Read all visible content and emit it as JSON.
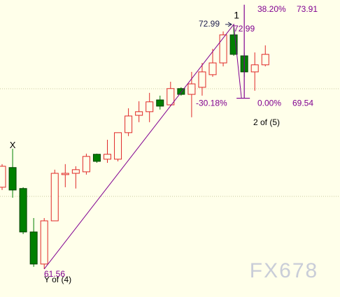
{
  "chart_data": {
    "type": "candlestick",
    "candles": {
      "open": [
        65.38,
        66.3,
        65.32,
        63.29,
        61.79,
        63.81,
        65.97,
        66.03,
        66.1,
        66.92,
        66.69,
        66.69,
        67.93,
        68.74,
        68.91,
        69.46,
        69.23,
        69.99,
        69.72,
        70.05,
        70.64,
        71.19,
        72.5,
        71.52,
        70.77,
        71.1
      ],
      "high": [
        66.46,
        67.18,
        65.38,
        63.94,
        63.94,
        66.2,
        66.46,
        66.36,
        66.95,
        66.95,
        67.6,
        67.93,
        69.07,
        69.4,
        69.79,
        69.66,
        70.31,
        70.05,
        70.77,
        71.19,
        71.85,
        72.66,
        72.99,
        71.68,
        71.68,
        72.01
      ],
      "low": [
        65.25,
        64.89,
        63.19,
        61.66,
        61.56,
        63.81,
        65.38,
        65.32,
        65.97,
        66.52,
        66.52,
        66.59,
        67.77,
        68.42,
        68.42,
        69.01,
        69.17,
        69.66,
        68.65,
        69.66,
        70.54,
        71.03,
        71.52,
        70.54,
        69.89,
        71.03
      ],
      "close": [
        66.36,
        65.25,
        63.29,
        61.79,
        63.81,
        66.03,
        66.03,
        66.2,
        66.82,
        66.59,
        66.92,
        67.93,
        68.71,
        68.91,
        69.37,
        69.17,
        69.99,
        69.72,
        70.21,
        70.77,
        71.19,
        72.5,
        71.59,
        70.77,
        71.1,
        71.59
      ]
    },
    "up_color": "#e02828",
    "down_color": "#008000",
    "line_color": "#800090",
    "ylim": [
      60.25,
      74.13
    ],
    "swing_low": 61.56,
    "swing_high": 72.99,
    "fib_levels": [
      {
        "label": "0.00%",
        "price": 69.54
      },
      {
        "label": "38.20%",
        "price": 73.91
      }
    ],
    "retracement": "-30.18%",
    "wave_labels": [
      "X",
      "1",
      "2 of (5)",
      "Y of (4)"
    ],
    "watermark": "FX678"
  }
}
